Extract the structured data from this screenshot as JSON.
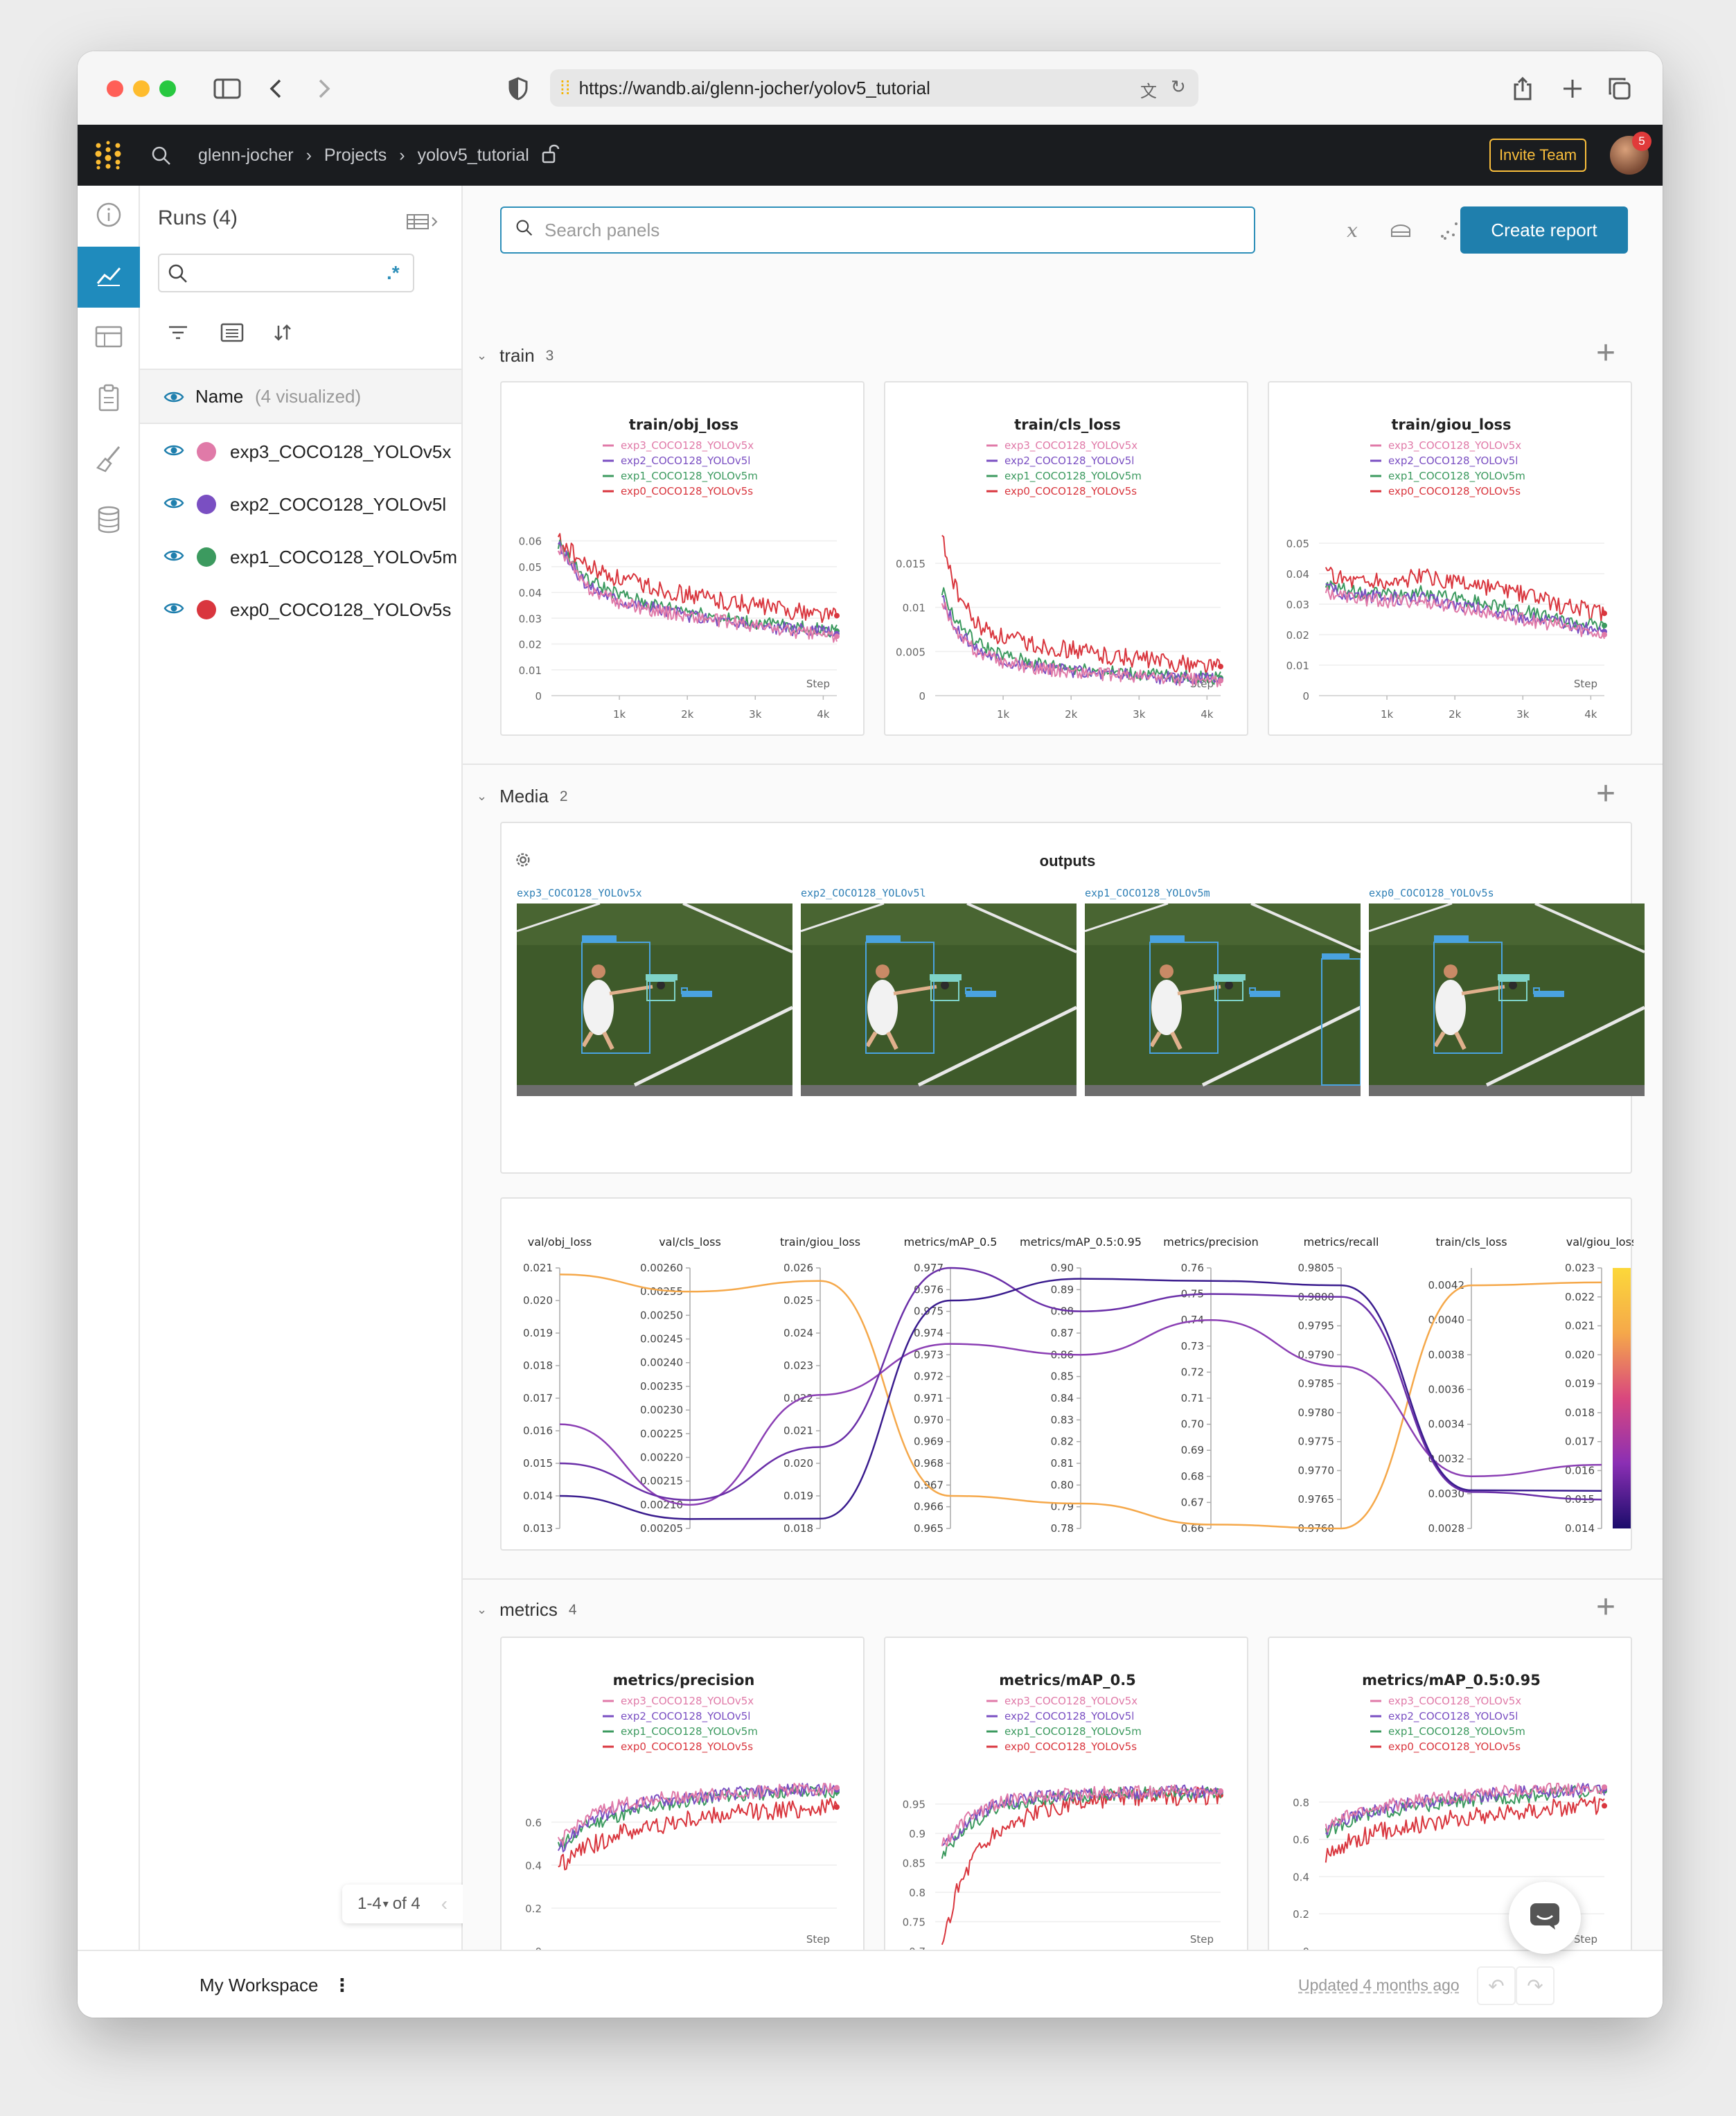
{
  "browser": {
    "url": "https://wandb.ai/glenn-jocher/yolov5_tutorial"
  },
  "nav": {
    "crumbs": [
      "glenn-jocher",
      "Projects",
      "yolov5_tutorial"
    ],
    "invite_label": "Invite Team",
    "notification_count": "5"
  },
  "runs": {
    "title": "Runs (4)",
    "name_header": "Name",
    "visualized": "(4 visualized)",
    "regex_label": ".*",
    "items": [
      {
        "name": "exp3_COCO128_YOLOv5x",
        "color": "#e07aa8"
      },
      {
        "name": "exp2_COCO128_YOLOv5l",
        "color": "#7a4fc2"
      },
      {
        "name": "exp1_COCO128_YOLOv5m",
        "color": "#3c9a5f"
      },
      {
        "name": "exp0_COCO128_YOLOv5s",
        "color": "#d9363e"
      }
    ],
    "pager_label": "1-4",
    "pager_total": "of 4"
  },
  "toolbar": {
    "search_placeholder": "Search panels",
    "create_report": "Create report"
  },
  "sections": [
    {
      "name": "train",
      "count": "3"
    },
    {
      "name": "Media",
      "count": "2"
    },
    {
      "name": "metrics",
      "count": "4"
    }
  ],
  "legend": [
    "exp3_COCO128_YOLOv5x",
    "exp2_COCO128_YOLOv5l",
    "exp1_COCO128_YOLOv5m",
    "exp0_COCO128_YOLOv5s"
  ],
  "media": {
    "title": "outputs",
    "captions": [
      "exp3_COCO128_YOLOv5x",
      "exp2_COCO128_YOLOv5l",
      "exp1_COCO128_YOLOv5m",
      "exp0_COCO128_YOLOv5s"
    ]
  },
  "bottom": {
    "workspace": "My Workspace",
    "updated": "Updated 4 months ago"
  },
  "chart_data": [
    {
      "type": "line",
      "title": "train/obj_loss",
      "xlabel": "Step",
      "xticks": [
        "1k",
        "2k",
        "3k",
        "4k"
      ],
      "xlim": [
        0,
        4200
      ],
      "yticks": [
        0,
        0.01,
        0.02,
        0.03,
        0.04,
        0.05,
        0.06
      ],
      "ylim": [
        0,
        0.065
      ],
      "series": [
        {
          "name": "exp3_COCO128_YOLOv5x",
          "x": [
            100,
            500,
            1000,
            1500,
            2000,
            2500,
            3000,
            3500,
            4200
          ],
          "y": [
            0.058,
            0.042,
            0.036,
            0.033,
            0.031,
            0.029,
            0.027,
            0.025,
            0.023
          ]
        },
        {
          "name": "exp2_COCO128_YOLOv5l",
          "x": [
            100,
            500,
            1000,
            1500,
            2000,
            2500,
            3000,
            3500,
            4200
          ],
          "y": [
            0.058,
            0.043,
            0.037,
            0.034,
            0.031,
            0.029,
            0.027,
            0.026,
            0.024
          ]
        },
        {
          "name": "exp1_COCO128_YOLOv5m",
          "x": [
            100,
            500,
            1000,
            1500,
            2000,
            2500,
            3000,
            3500,
            4200
          ],
          "y": [
            0.059,
            0.045,
            0.039,
            0.035,
            0.033,
            0.03,
            0.028,
            0.027,
            0.025
          ]
        },
        {
          "name": "exp0_COCO128_YOLOv5s",
          "x": [
            100,
            500,
            1000,
            1500,
            2000,
            2500,
            3000,
            3500,
            4200
          ],
          "y": [
            0.061,
            0.05,
            0.045,
            0.042,
            0.039,
            0.037,
            0.035,
            0.033,
            0.031
          ]
        }
      ]
    },
    {
      "type": "line",
      "title": "train/cls_loss",
      "xlabel": "Step",
      "xticks": [
        "1k",
        "2k",
        "3k",
        "4k"
      ],
      "xlim": [
        0,
        4200
      ],
      "yticks": [
        0,
        0.005,
        0.01,
        0.015
      ],
      "ylim": [
        0,
        0.019
      ],
      "series": [
        {
          "name": "exp3_COCO128_YOLOv5x",
          "x": [
            100,
            300,
            600,
            1000,
            1500,
            2000,
            2500,
            3000,
            3500,
            4200
          ],
          "y": [
            0.011,
            0.007,
            0.005,
            0.0038,
            0.0031,
            0.0027,
            0.0024,
            0.0022,
            0.0019,
            0.0017
          ]
        },
        {
          "name": "exp2_COCO128_YOLOv5l",
          "x": [
            100,
            300,
            600,
            1000,
            1500,
            2000,
            2500,
            3000,
            3500,
            4200
          ],
          "y": [
            0.011,
            0.0075,
            0.0053,
            0.004,
            0.0032,
            0.0028,
            0.0025,
            0.0022,
            0.002,
            0.0018
          ]
        },
        {
          "name": "exp1_COCO128_YOLOv5m",
          "x": [
            100,
            300,
            600,
            1000,
            1500,
            2000,
            2500,
            3000,
            3500,
            4200
          ],
          "y": [
            0.012,
            0.0085,
            0.006,
            0.0045,
            0.0036,
            0.0031,
            0.0027,
            0.0024,
            0.0022,
            0.002
          ]
        },
        {
          "name": "exp0_COCO128_YOLOv5s",
          "x": [
            100,
            300,
            600,
            1000,
            1500,
            2000,
            2500,
            3000,
            3500,
            4200
          ],
          "y": [
            0.018,
            0.012,
            0.008,
            0.0065,
            0.0057,
            0.0052,
            0.0046,
            0.0042,
            0.0037,
            0.0033
          ]
        }
      ]
    },
    {
      "type": "line",
      "title": "train/giou_loss",
      "xlabel": "Step",
      "xticks": [
        "1k",
        "2k",
        "3k",
        "4k"
      ],
      "xlim": [
        0,
        4200
      ],
      "yticks": [
        0,
        0.01,
        0.02,
        0.03,
        0.04,
        0.05
      ],
      "ylim": [
        0,
        0.055
      ],
      "series": [
        {
          "name": "exp3_COCO128_YOLOv5x",
          "x": [
            100,
            500,
            1000,
            1500,
            2000,
            2500,
            3000,
            3500,
            4200
          ],
          "y": [
            0.034,
            0.032,
            0.031,
            0.031,
            0.029,
            0.027,
            0.025,
            0.023,
            0.02
          ]
        },
        {
          "name": "exp2_COCO128_YOLOv5l",
          "x": [
            100,
            500,
            1000,
            1500,
            2000,
            2500,
            3000,
            3500,
            4200
          ],
          "y": [
            0.035,
            0.033,
            0.032,
            0.032,
            0.03,
            0.028,
            0.026,
            0.024,
            0.021
          ]
        },
        {
          "name": "exp1_COCO128_YOLOv5m",
          "x": [
            100,
            500,
            1000,
            1500,
            2000,
            2500,
            3000,
            3500,
            4200
          ],
          "y": [
            0.036,
            0.034,
            0.033,
            0.034,
            0.032,
            0.03,
            0.028,
            0.025,
            0.023
          ]
        },
        {
          "name": "exp0_COCO128_YOLOv5s",
          "x": [
            100,
            500,
            1000,
            1500,
            2000,
            2500,
            3000,
            3500,
            4200
          ],
          "y": [
            0.04,
            0.038,
            0.037,
            0.039,
            0.037,
            0.035,
            0.033,
            0.03,
            0.027
          ]
        }
      ]
    },
    {
      "type": "parallel-coordinates",
      "axes": [
        {
          "label": "val/obj_loss",
          "ticks": [
            "0.021",
            "0.020",
            "0.019",
            "0.018",
            "0.017",
            "0.016",
            "0.015",
            "0.014",
            "0.013"
          ],
          "range": [
            0.013,
            0.021
          ]
        },
        {
          "label": "val/cls_loss",
          "ticks": [
            "0.00260",
            "0.00255",
            "0.00250",
            "0.00245",
            "0.00240",
            "0.00235",
            "0.00230",
            "0.00225",
            "0.00220",
            "0.00215",
            "0.00210",
            "0.00205"
          ],
          "range": [
            0.00205,
            0.0026
          ]
        },
        {
          "label": "train/giou_loss",
          "ticks": [
            "0.026",
            "0.025",
            "0.024",
            "0.023",
            "0.022",
            "0.021",
            "0.020",
            "0.019",
            "0.018"
          ],
          "range": [
            0.018,
            0.026
          ]
        },
        {
          "label": "metrics/mAP_0.5",
          "ticks": [
            "0.977",
            "0.976",
            "0.975",
            "0.974",
            "0.973",
            "0.972",
            "0.971",
            "0.970",
            "0.969",
            "0.968",
            "0.967",
            "0.966",
            "0.965"
          ],
          "range": [
            0.965,
            0.977
          ]
        },
        {
          "label": "metrics/mAP_0.5:0.95",
          "ticks": [
            "0.90",
            "0.89",
            "0.88",
            "0.87",
            "0.86",
            "0.85",
            "0.84",
            "0.83",
            "0.82",
            "0.81",
            "0.80",
            "0.79",
            "0.78"
          ],
          "range": [
            0.78,
            0.9
          ]
        },
        {
          "label": "metrics/precision",
          "ticks": [
            "0.76",
            "0.75",
            "0.74",
            "0.73",
            "0.72",
            "0.71",
            "0.70",
            "0.69",
            "0.68",
            "0.67",
            "0.66"
          ],
          "range": [
            0.66,
            0.76
          ]
        },
        {
          "label": "metrics/recall",
          "ticks": [
            "0.9805",
            "0.9800",
            "0.9795",
            "0.9790",
            "0.9785",
            "0.9780",
            "0.9775",
            "0.9770",
            "0.9765",
            "0.9760"
          ],
          "range": [
            0.976,
            0.9805
          ]
        },
        {
          "label": "train/cls_loss",
          "ticks": [
            "0.0042",
            "0.0040",
            "0.0038",
            "0.0036",
            "0.0034",
            "0.0032",
            "0.0030",
            "0.0028"
          ],
          "range": [
            0.0028,
            0.0043
          ]
        },
        {
          "label": "val/giou_loss",
          "ticks": [
            "0.023",
            "0.022",
            "0.021",
            "0.020",
            "0.019",
            "0.018",
            "0.017",
            "0.016",
            "0.015",
            "0.014"
          ],
          "range": [
            0.014,
            0.023
          ]
        }
      ],
      "lines": [
        {
          "color": "#f5a84a",
          "values": [
            0.0208,
            0.00255,
            0.0256,
            0.9665,
            0.7915,
            0.6615,
            0.976,
            0.0042,
            0.0225
          ]
        },
        {
          "color": "#8b3fb4",
          "values": [
            0.0162,
            0.0021,
            0.0221,
            0.9735,
            0.86,
            0.74,
            0.9788,
            0.0031,
            0.0162
          ]
        },
        {
          "color": "#6a2fa8",
          "values": [
            0.015,
            0.00211,
            0.0205,
            0.977,
            0.88,
            0.75,
            0.98,
            0.00301,
            0.015
          ]
        },
        {
          "color": "#3a1c8e",
          "values": [
            0.014,
            0.00207,
            0.0183,
            0.9755,
            0.895,
            0.755,
            0.9802,
            0.00302,
            0.0153
          ]
        }
      ],
      "colorbar_ticks": [
        "0.023",
        "0.022",
        "0.021",
        "0.020",
        "0.019",
        "0.018",
        "0.017",
        "0.016",
        "0.015",
        "0.014"
      ]
    },
    {
      "type": "line",
      "title": "metrics/precision",
      "xlabel": "Step",
      "xticks": [
        "1k",
        "2k",
        "3k",
        "4k"
      ],
      "xlim": [
        0,
        4200
      ],
      "yticks": [
        0,
        0.2,
        0.4,
        0.6
      ],
      "ylim": [
        0,
        0.78
      ],
      "series": [
        {
          "name": "exp3_COCO128_YOLOv5x",
          "x": [
            100,
            500,
            1000,
            1500,
            2000,
            2500,
            3000,
            3500,
            4200
          ],
          "y": [
            0.5,
            0.62,
            0.68,
            0.71,
            0.72,
            0.73,
            0.74,
            0.75,
            0.76
          ]
        },
        {
          "name": "exp2_COCO128_YOLOv5l",
          "x": [
            100,
            500,
            1000,
            1500,
            2000,
            2500,
            3000,
            3500,
            4200
          ],
          "y": [
            0.47,
            0.6,
            0.66,
            0.7,
            0.71,
            0.73,
            0.74,
            0.75,
            0.75
          ]
        },
        {
          "name": "exp1_COCO128_YOLOv5m",
          "x": [
            100,
            500,
            1000,
            1500,
            2000,
            2500,
            3000,
            3500,
            4200
          ],
          "y": [
            0.48,
            0.58,
            0.63,
            0.67,
            0.7,
            0.72,
            0.73,
            0.74,
            0.74
          ]
        },
        {
          "name": "exp0_COCO128_YOLOv5s",
          "x": [
            100,
            500,
            1000,
            1500,
            2000,
            2500,
            3000,
            3500,
            4200
          ],
          "y": [
            0.4,
            0.48,
            0.55,
            0.58,
            0.61,
            0.63,
            0.65,
            0.66,
            0.67
          ]
        }
      ]
    },
    {
      "type": "line",
      "title": "metrics/mAP_0.5",
      "xlabel": "Step",
      "xticks": [
        "1k",
        "2k",
        "3k",
        "4k"
      ],
      "xlim": [
        0,
        4200
      ],
      "yticks": [
        0.7,
        0.75,
        0.8,
        0.85,
        0.9,
        0.95
      ],
      "ylim": [
        0.7,
        0.985
      ],
      "series": [
        {
          "name": "exp3_COCO128_YOLOv5x",
          "x": [
            100,
            500,
            1000,
            1500,
            2000,
            2500,
            3000,
            3500,
            4200
          ],
          "y": [
            0.88,
            0.93,
            0.955,
            0.963,
            0.967,
            0.969,
            0.97,
            0.971,
            0.972
          ]
        },
        {
          "name": "exp2_COCO128_YOLOv5l",
          "x": [
            100,
            500,
            1000,
            1500,
            2000,
            2500,
            3000,
            3500,
            4200
          ],
          "y": [
            0.87,
            0.925,
            0.953,
            0.962,
            0.966,
            0.968,
            0.97,
            0.971,
            0.971
          ]
        },
        {
          "name": "exp1_COCO128_YOLOv5m",
          "x": [
            100,
            500,
            1000,
            1500,
            2000,
            2500,
            3000,
            3500,
            4200
          ],
          "y": [
            0.86,
            0.915,
            0.945,
            0.958,
            0.963,
            0.966,
            0.968,
            0.969,
            0.97
          ]
        },
        {
          "name": "exp0_COCO128_YOLOv5s",
          "x": [
            100,
            300,
            600,
            1000,
            1500,
            2000,
            2500,
            3000,
            3500,
            4200
          ],
          "y": [
            0.7,
            0.8,
            0.87,
            0.91,
            0.935,
            0.948,
            0.955,
            0.96,
            0.963,
            0.965
          ]
        }
      ]
    },
    {
      "type": "line",
      "title": "metrics/mAP_0.5:0.95",
      "xlabel": "Step",
      "xticks": [
        "1k",
        "2k",
        "3k",
        "4k"
      ],
      "xlim": [
        0,
        4200
      ],
      "yticks": [
        0,
        0.2,
        0.4,
        0.6,
        0.8
      ],
      "ylim": [
        0,
        0.9
      ],
      "series": [
        {
          "name": "exp3_COCO128_YOLOv5x",
          "x": [
            100,
            500,
            1000,
            1500,
            2000,
            2500,
            3000,
            3500,
            4200
          ],
          "y": [
            0.66,
            0.74,
            0.78,
            0.81,
            0.83,
            0.85,
            0.86,
            0.87,
            0.88
          ]
        },
        {
          "name": "exp2_COCO128_YOLOv5l",
          "x": [
            100,
            500,
            1000,
            1500,
            2000,
            2500,
            3000,
            3500,
            4200
          ],
          "y": [
            0.65,
            0.73,
            0.77,
            0.8,
            0.82,
            0.84,
            0.85,
            0.86,
            0.87
          ]
        },
        {
          "name": "exp1_COCO128_YOLOv5m",
          "x": [
            100,
            500,
            1000,
            1500,
            2000,
            2500,
            3000,
            3500,
            4200
          ],
          "y": [
            0.64,
            0.71,
            0.75,
            0.78,
            0.8,
            0.82,
            0.83,
            0.85,
            0.86
          ]
        },
        {
          "name": "exp0_COCO128_YOLOv5s",
          "x": [
            100,
            500,
            1000,
            1500,
            2000,
            2500,
            3000,
            3500,
            4200
          ],
          "y": [
            0.5,
            0.6,
            0.65,
            0.68,
            0.71,
            0.73,
            0.75,
            0.77,
            0.78
          ]
        }
      ]
    }
  ]
}
